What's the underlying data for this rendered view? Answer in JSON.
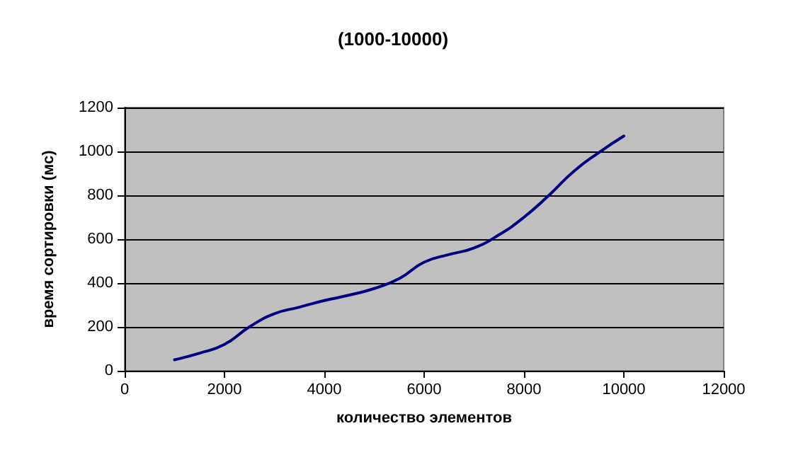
{
  "chart_data": {
    "type": "line",
    "title": "(1000-10000)",
    "xlabel": "количество элементов",
    "ylabel": "время сортировки (мс)",
    "x": [
      1000,
      1500,
      2000,
      2500,
      3000,
      3500,
      4000,
      4500,
      5000,
      5500,
      6000,
      6500,
      7000,
      7500,
      8000,
      8500,
      9000,
      9500,
      10000
    ],
    "series": [
      {
        "color": "#000080",
        "values": [
          50,
          80,
          120,
          200,
          260,
          290,
          320,
          345,
          375,
          420,
          495,
          530,
          560,
          620,
          700,
          800,
          910,
          995,
          1070
        ]
      }
    ],
    "xlim": [
      0,
      12000
    ],
    "xticks": [
      0,
      2000,
      4000,
      6000,
      8000,
      10000,
      12000
    ],
    "ylim": [
      0,
      1200
    ],
    "yticks": [
      0,
      200,
      400,
      600,
      800,
      1000,
      1200
    ],
    "grid": "y",
    "marker": "none",
    "line_style": "solid"
  }
}
